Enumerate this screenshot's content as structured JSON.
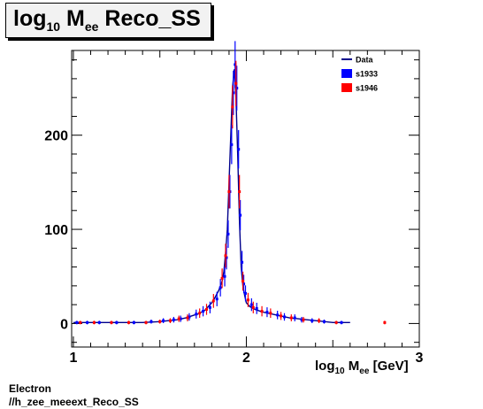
{
  "header": {
    "title_main": "log",
    "title_sub1": "10",
    "title_mid": " M",
    "title_sub2": "ee",
    "title_tail": " Reco_SS"
  },
  "footer": {
    "line1": "Electron",
    "line2": "//h_zee_meeext_Reco_SS"
  },
  "chart_data": {
    "type": "scatter",
    "xlabel_main": "log",
    "xlabel_sub1": "10",
    "xlabel_mid": " M",
    "xlabel_sub2": "ee",
    "xlabel_tail": " [GeV]",
    "ylabel": "",
    "xlim": [
      0.99,
      3.0
    ],
    "ylim": [
      -25,
      290
    ],
    "x_ticks": [
      1,
      2,
      3
    ],
    "x_tick_labels": [
      "1",
      "2",
      "3"
    ],
    "y_ticks": [
      0,
      100,
      200
    ],
    "y_tick_labels": [
      "0",
      "100",
      "200"
    ],
    "grid": false,
    "legend_position": "top-right",
    "colors": {
      "data": "#00008b",
      "s1933": "#0000ff",
      "s1946": "#ff0000"
    },
    "series": [
      {
        "name": "Data",
        "style": "line",
        "color": "#00008b",
        "x": [
          1.0,
          1.05,
          1.1,
          1.2,
          1.3,
          1.4,
          1.5,
          1.55,
          1.6,
          1.65,
          1.7,
          1.72,
          1.74,
          1.76,
          1.78,
          1.8,
          1.82,
          1.84,
          1.86,
          1.87,
          1.88,
          1.89,
          1.9,
          1.91,
          1.92,
          1.93,
          1.94,
          1.95,
          1.96,
          1.97,
          1.98,
          1.99,
          2.0,
          2.02,
          2.05,
          2.08,
          2.1,
          2.15,
          2.2,
          2.25,
          2.3,
          2.35,
          2.4,
          2.5,
          2.6
        ],
        "y": [
          1,
          1,
          1,
          1,
          1,
          1,
          2,
          3,
          4,
          6,
          9,
          10,
          12,
          14,
          18,
          22,
          28,
          35,
          45,
          55,
          75,
          100,
          150,
          200,
          250,
          270,
          240,
          180,
          110,
          60,
          40,
          30,
          22,
          18,
          15,
          13,
          12,
          10,
          8,
          6,
          5,
          4,
          3,
          1,
          1
        ]
      },
      {
        "name": "s1933",
        "style": "points",
        "color": "#0000ff",
        "x": [
          1.02,
          1.08,
          1.15,
          1.25,
          1.35,
          1.45,
          1.52,
          1.58,
          1.62,
          1.67,
          1.71,
          1.75,
          1.79,
          1.83,
          1.85,
          1.875,
          1.885,
          1.895,
          1.905,
          1.915,
          1.925,
          1.935,
          1.945,
          1.955,
          1.965,
          1.975,
          1.985,
          1.995,
          2.03,
          2.06,
          2.12,
          2.18,
          2.22,
          2.28,
          2.32,
          2.38,
          2.45,
          2.55
        ],
        "y": [
          1,
          1,
          1,
          1,
          1,
          2,
          3,
          4,
          5,
          7,
          10,
          13,
          17,
          26,
          38,
          50,
          70,
          95,
          140,
          190,
          245,
          275,
          250,
          185,
          115,
          65,
          42,
          32,
          20,
          16,
          12,
          9,
          7,
          6,
          4,
          3,
          2,
          1
        ]
      },
      {
        "name": "s1946",
        "style": "points",
        "color": "#ff0000",
        "x": [
          1.04,
          1.12,
          1.22,
          1.32,
          1.42,
          1.5,
          1.56,
          1.61,
          1.66,
          1.73,
          1.77,
          1.81,
          1.86,
          1.88,
          1.9,
          1.92,
          1.94,
          1.96,
          1.98,
          2.01,
          2.04,
          2.09,
          2.14,
          2.2,
          2.26,
          2.33,
          2.42,
          2.52,
          2.8
        ],
        "y": [
          1,
          1,
          1,
          1,
          1,
          2,
          3,
          5,
          6,
          11,
          15,
          24,
          48,
          72,
          140,
          230,
          255,
          140,
          45,
          25,
          17,
          13,
          11,
          8,
          6,
          4,
          3,
          1,
          1
        ]
      }
    ]
  }
}
